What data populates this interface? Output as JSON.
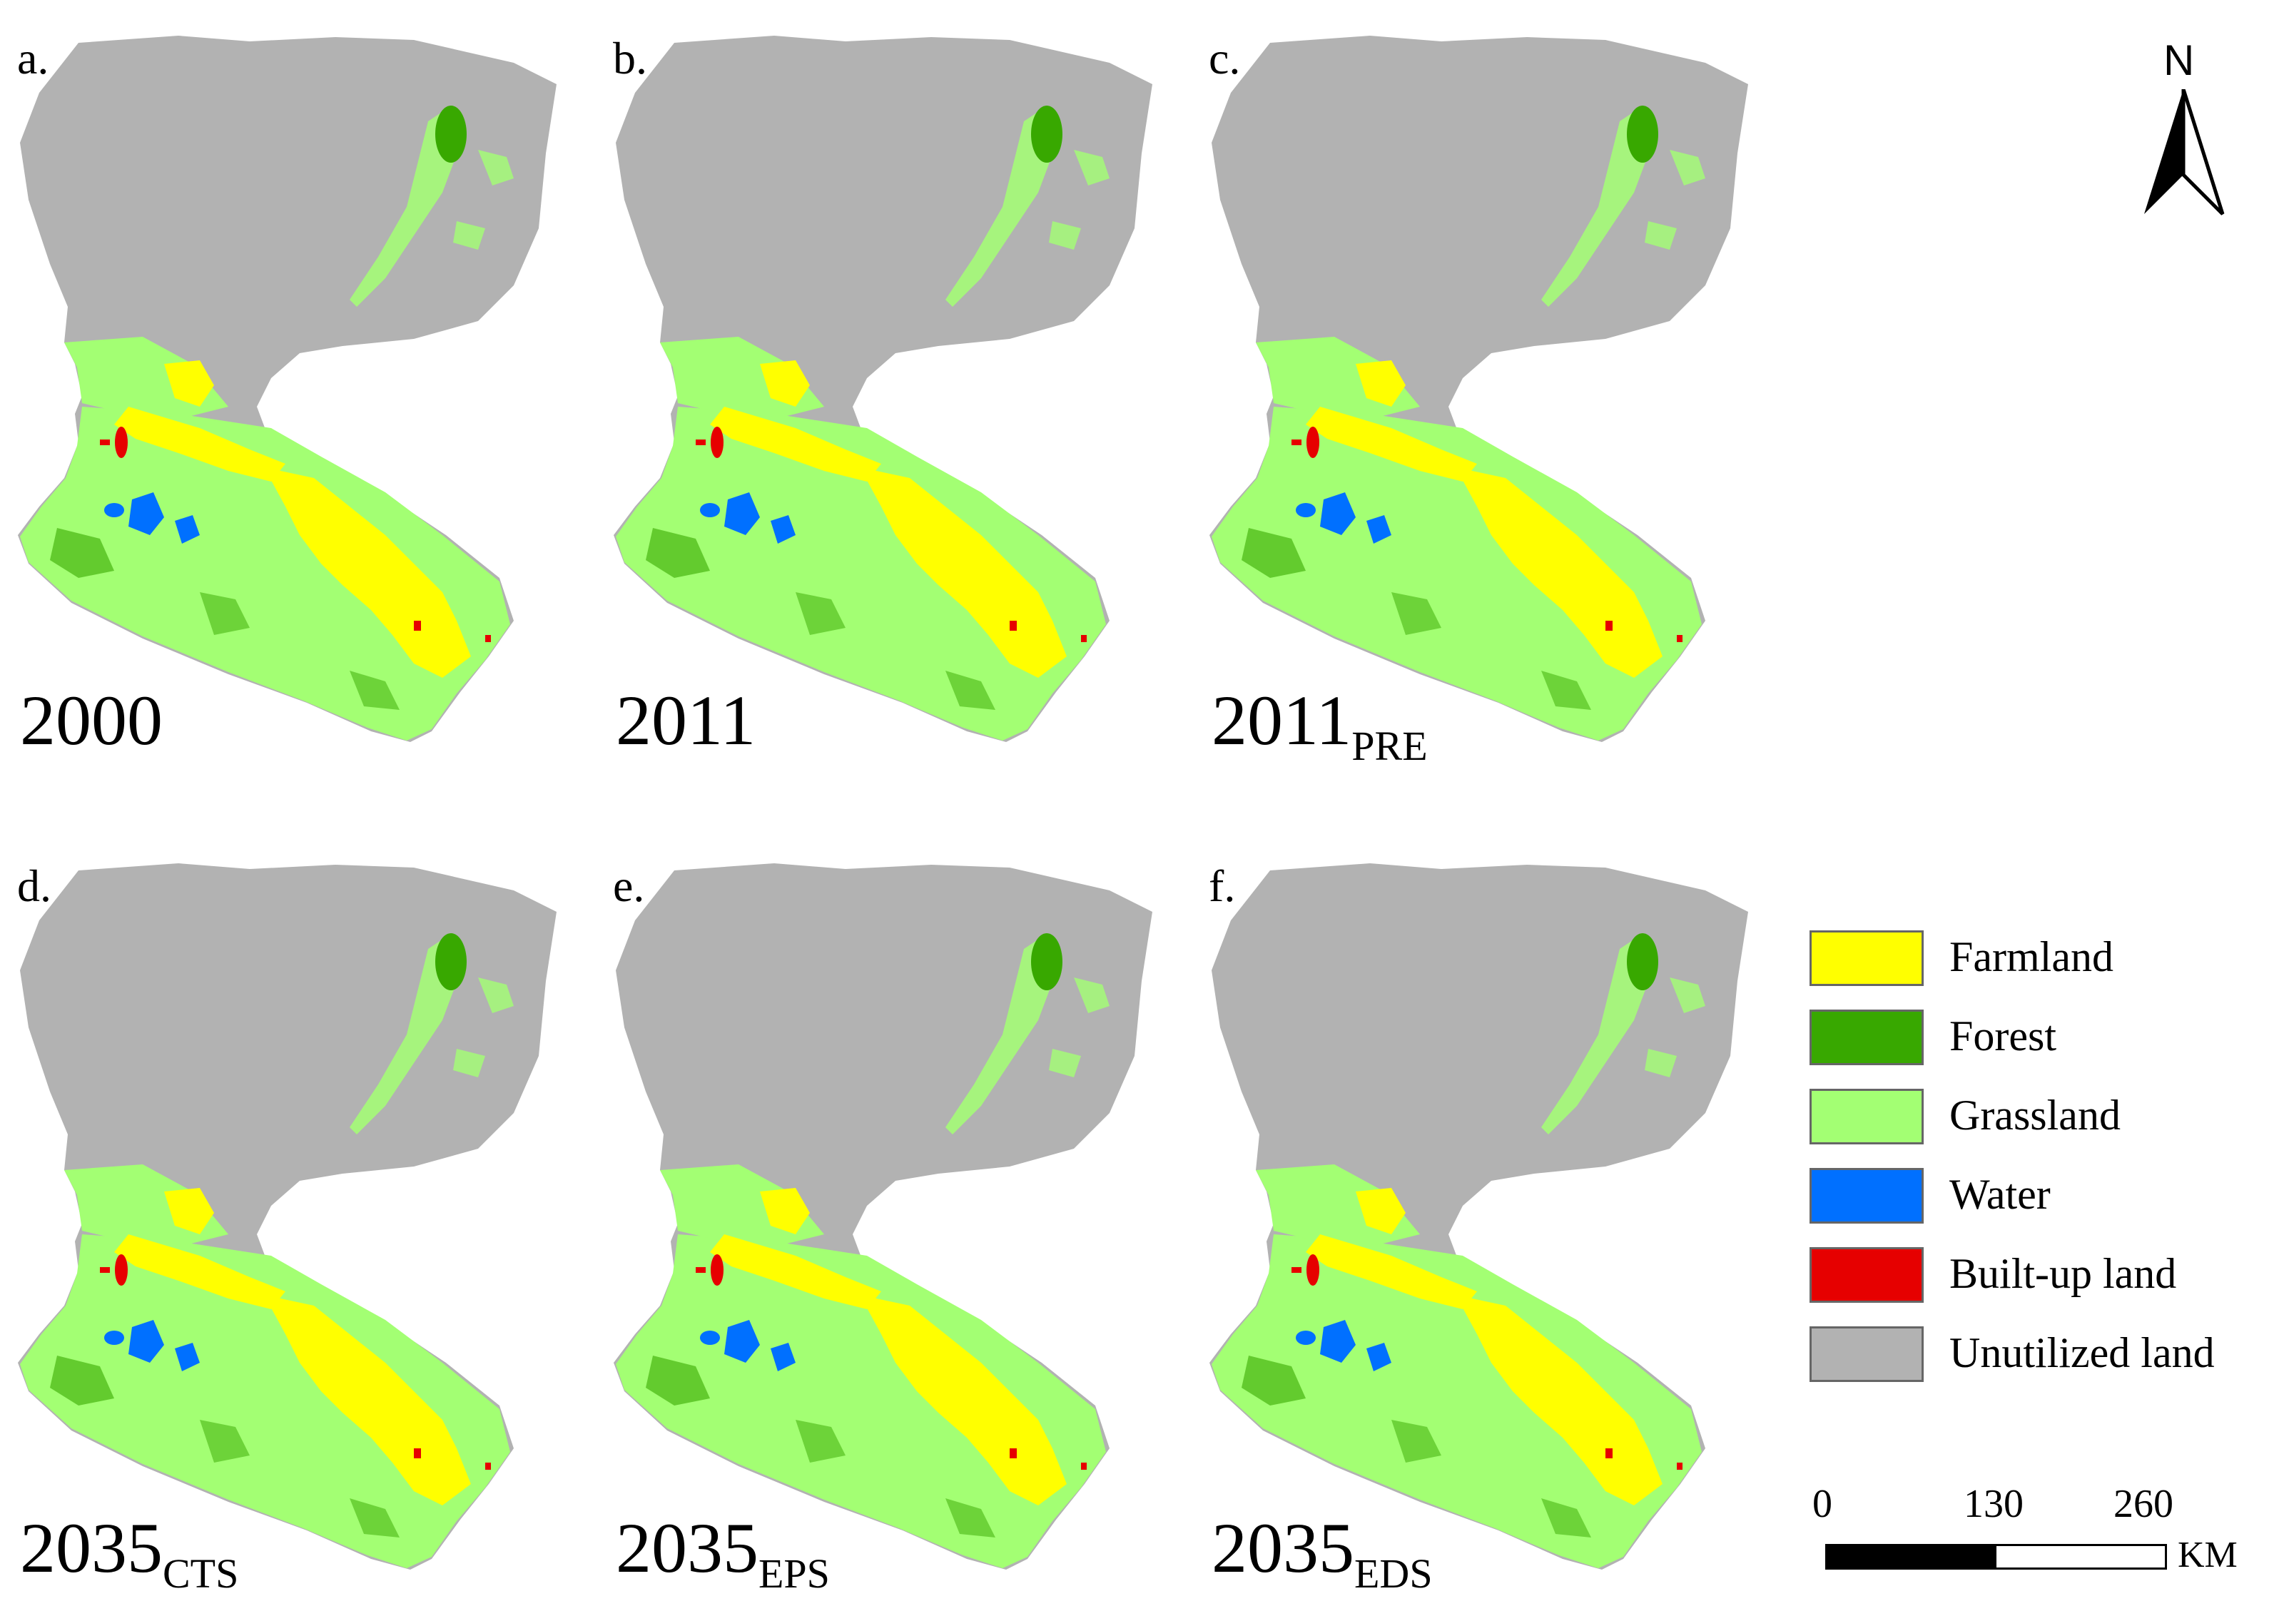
{
  "panels": [
    {
      "label": "a.",
      "year": "2000",
      "sub": ""
    },
    {
      "label": "b.",
      "year": "2011",
      "sub": ""
    },
    {
      "label": "c.",
      "year": "2011",
      "sub": "PRE"
    },
    {
      "label": "d.",
      "year": "2035",
      "sub": "CTS"
    },
    {
      "label": "e.",
      "year": "2035",
      "sub": "EPS"
    },
    {
      "label": "f.",
      "year": "2035",
      "sub": "EDS"
    }
  ],
  "north_arrow": {
    "letter": "N"
  },
  "legend": {
    "items": [
      {
        "label": "Farmland",
        "color": "#ffff00"
      },
      {
        "label": "Forest",
        "color": "#38a800"
      },
      {
        "label": "Grassland",
        "color": "#a3ff73"
      },
      {
        "label": "Water",
        "color": "#0070ff"
      },
      {
        "label": "Built-up land",
        "color": "#e60000"
      },
      {
        "label": "Unutilized land",
        "color": "#b2b2b2"
      }
    ]
  },
  "scale_bar": {
    "ticks": [
      "0",
      "130",
      "260"
    ],
    "unit": "KM"
  }
}
